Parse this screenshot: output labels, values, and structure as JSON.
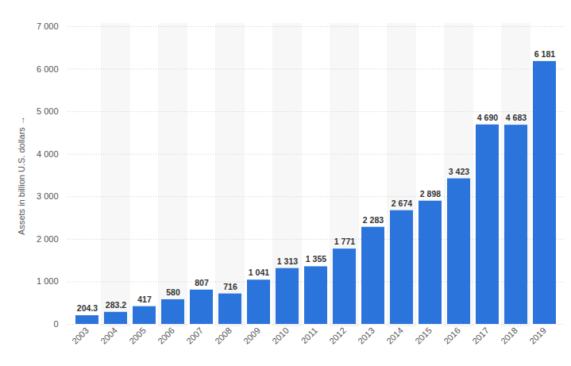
{
  "chart_data": {
    "type": "bar",
    "y_label": "Assets in billion U.S. dollars",
    "categories": [
      "2003",
      "2004",
      "2005",
      "2006",
      "2007",
      "2008",
      "2009",
      "2010",
      "2011",
      "2012",
      "2013",
      "2014",
      "2015",
      "2016",
      "2017",
      "2018",
      "2019"
    ],
    "values": [
      204.3,
      283.2,
      417,
      580,
      807,
      716,
      1041,
      1313,
      1355,
      1771,
      2283,
      2674,
      2898,
      3423,
      4690,
      4683,
      6181
    ],
    "value_labels": [
      "204.3",
      "283.2",
      "417",
      "580",
      "807",
      "716",
      "1 041",
      "1 313",
      "1 355",
      "1 771",
      "2 283",
      "2 674",
      "2 898",
      "3 423",
      "4 690",
      "4 683",
      "6 181"
    ],
    "data_labels": true,
    "color": "#2a74db",
    "ylim": [
      0,
      7000
    ],
    "yticks": [
      0,
      {
        "value": 1000,
        "label": "1 000"
      },
      {
        "value": 2000,
        "label": "2 000"
      },
      {
        "value": 3000,
        "label": "3 000"
      },
      {
        "value": 4000,
        "label": "4 000"
      },
      {
        "value": 5000,
        "label": "5 000"
      },
      {
        "value": 6000,
        "label": "6 000"
      },
      {
        "value": 7000,
        "label": "7 000"
      }
    ],
    "grid": true
  }
}
